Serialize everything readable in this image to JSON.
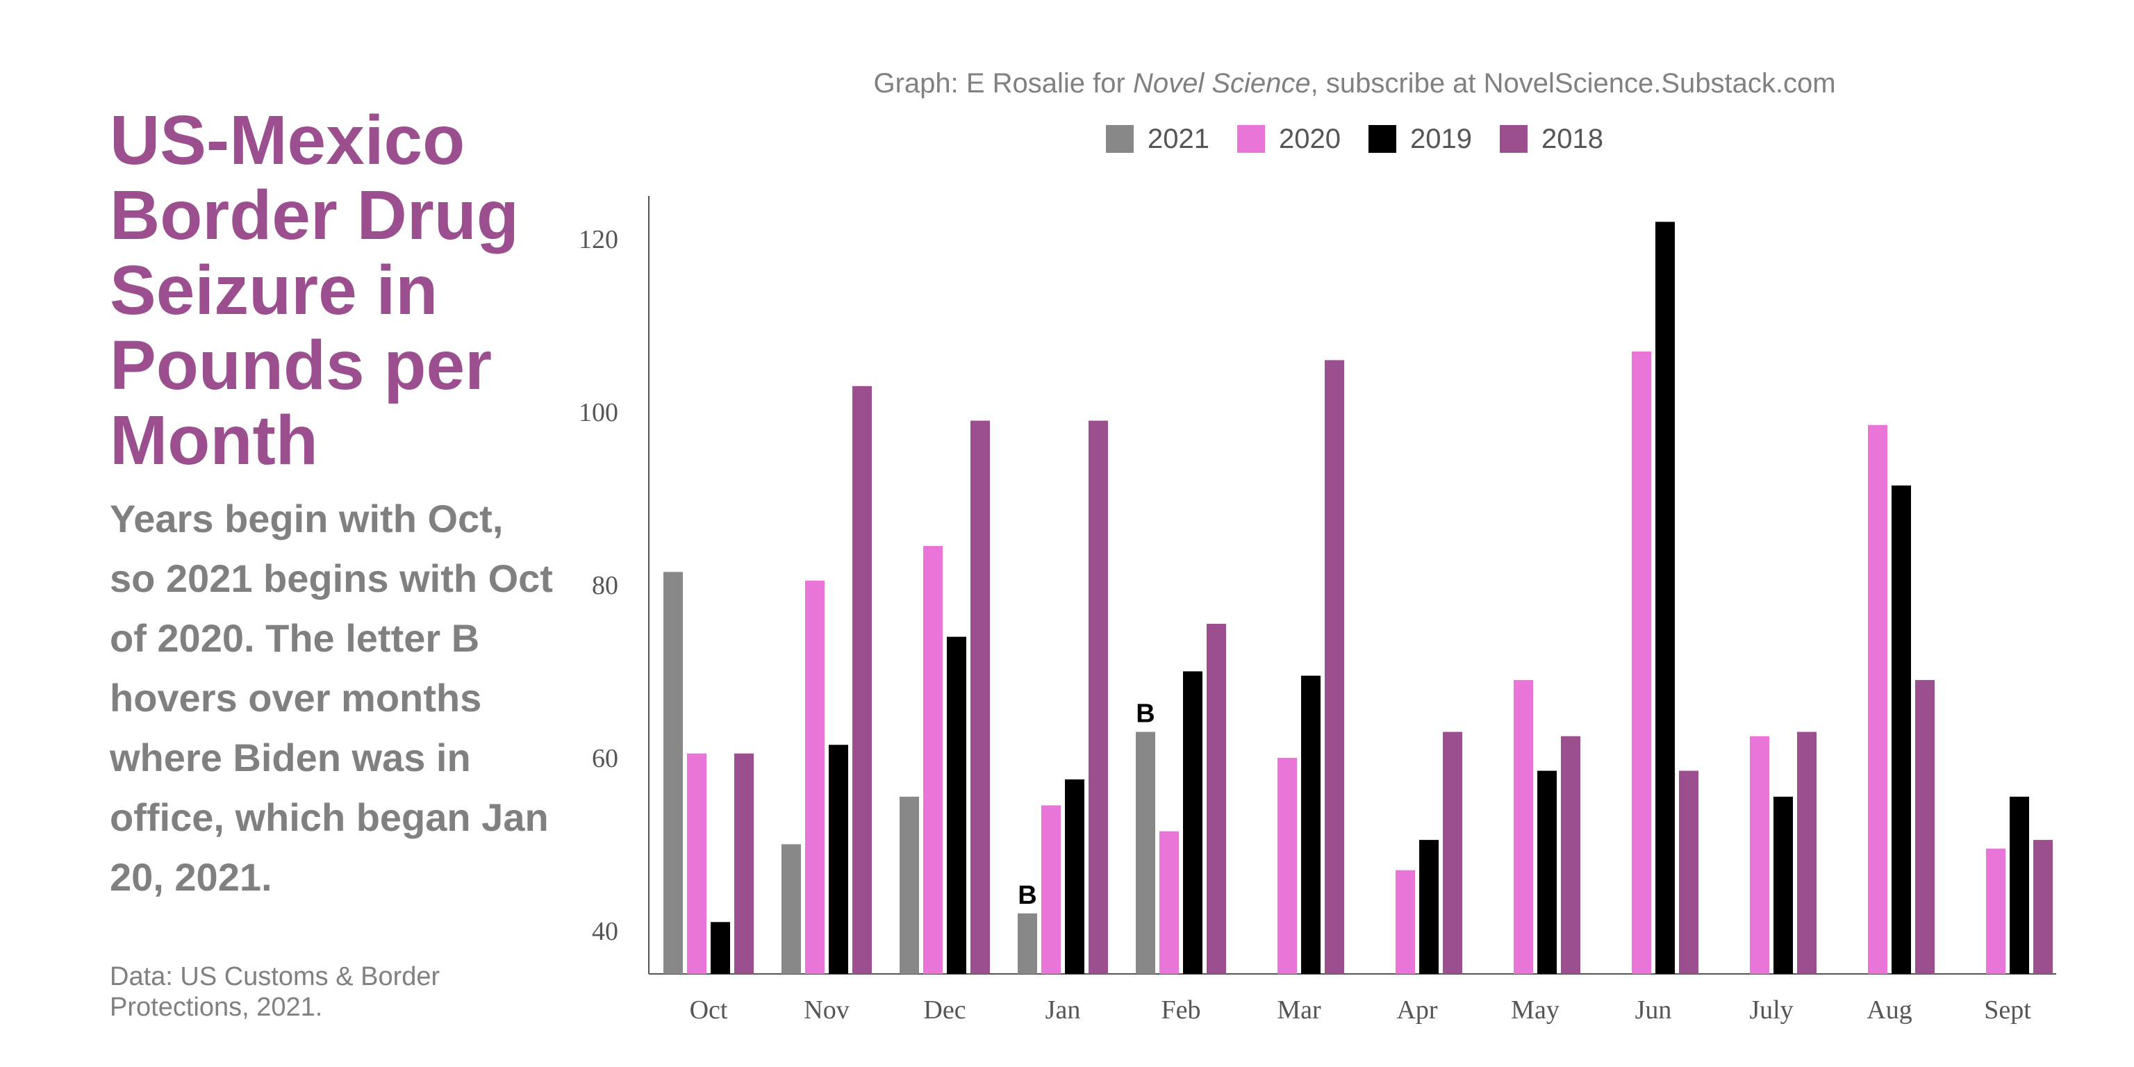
{
  "title": "US-Mexico Border Drug Seizure in Pounds per Month",
  "subtitle": "Years begin with Oct, so 2021 begins with Oct of 2020. The letter B hovers over months where Biden was in office, which began Jan 20, 2021.",
  "source": "Data: US Customs & Border Protections, 2021.",
  "credit": {
    "prefix": "Graph: E Rosalie for ",
    "publication": "Novel Science",
    "suffix": ", subscribe at NovelScience.Substack.com"
  },
  "chart_data": {
    "type": "bar",
    "categories": [
      "Oct",
      "Nov",
      "Dec",
      "Jan",
      "Feb",
      "Mar",
      "Apr",
      "May",
      "Jun",
      "July",
      "Aug",
      "Sept"
    ],
    "series": [
      {
        "name": "2021",
        "color": "#888888",
        "values": [
          81.5,
          50,
          55.5,
          42,
          63,
          null,
          null,
          null,
          null,
          null,
          null,
          null
        ]
      },
      {
        "name": "2020",
        "color": "#ea75d8",
        "values": [
          60.5,
          80.5,
          84.5,
          54.5,
          51.5,
          60,
          47,
          69,
          107,
          62.5,
          98.5,
          49.5
        ]
      },
      {
        "name": "2019",
        "color": "#000000",
        "values": [
          41,
          61.5,
          74,
          57.5,
          70,
          69.5,
          50.5,
          58.5,
          122,
          55.5,
          91.5,
          55.5
        ]
      },
      {
        "name": "2018",
        "color": "#9c4f8f",
        "values": [
          60.5,
          103,
          99,
          99,
          75.5,
          106,
          63,
          62.5,
          58.5,
          63,
          69,
          50.5
        ]
      }
    ],
    "annotations": [
      {
        "category": "Jan",
        "series": "2021",
        "text": "B"
      },
      {
        "category": "Feb",
        "series": "2021",
        "text": "B"
      }
    ],
    "yticks": [
      40,
      60,
      80,
      100,
      120
    ],
    "ylim": [
      35,
      125
    ],
    "legend": "top",
    "grid": false
  }
}
